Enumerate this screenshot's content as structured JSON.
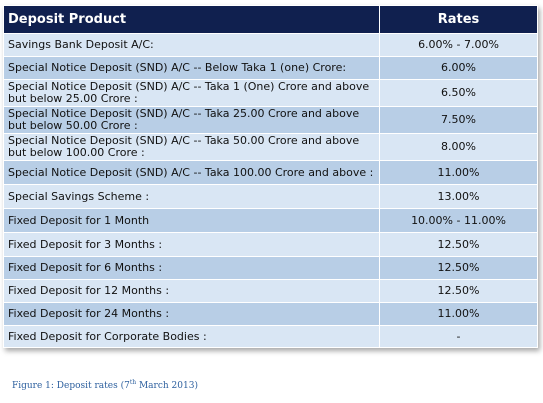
{
  "table": {
    "headers": {
      "product": "Deposit Product",
      "rates": "Rates"
    },
    "rows": [
      {
        "product": "Savings Bank Deposit A/C:",
        "rate": "6.00% - 7.00%"
      },
      {
        "product": "Special Notice Deposit (SND) A/C -- Below Taka 1 (one) Crore:",
        "rate": "6.00%"
      },
      {
        "product": "Special Notice Deposit (SND) A/C -- Taka 1 (One) Crore and above but below 25.00 Crore :",
        "rate": "6.50%"
      },
      {
        "product": "Special Notice Deposit (SND) A/C -- Taka 25.00 Crore and above but below 50.00 Crore :",
        "rate": "7.50%"
      },
      {
        "product": "Special Notice Deposit (SND) A/C -- Taka 50.00 Crore and above but below 100.00 Crore :",
        "rate": "8.00%"
      },
      {
        "product": "Special Notice Deposit (SND) A/C -- Taka 100.00 Crore and above :",
        "rate": "11.00%"
      },
      {
        "product": "Special Savings Scheme :",
        "rate": "13.00%"
      },
      {
        "product": "Fixed Deposit for 1 Month",
        "rate": "10.00% - 11.00%"
      },
      {
        "product": "Fixed Deposit for 3 Months :",
        "rate": "12.50%"
      },
      {
        "product": "Fixed Deposit for 6 Months :",
        "rate": "12.50%"
      },
      {
        "product": "Fixed Deposit for 12 Months :",
        "rate": "12.50%"
      },
      {
        "product": "Fixed Deposit for 24 Months :",
        "rate": "11.00%"
      },
      {
        "product": "Fixed Deposit for Corporate Bodies :",
        "rate": "-"
      }
    ]
  },
  "caption": {
    "prefix": "Figure 1: Deposit rates (7",
    "superscript": "th",
    "suffix": " March 2013)"
  },
  "colors": {
    "header_bg": "#10204f",
    "row_light": "#d9e6f4",
    "row_dark": "#b8cee6",
    "caption": "#2c5f9e"
  }
}
